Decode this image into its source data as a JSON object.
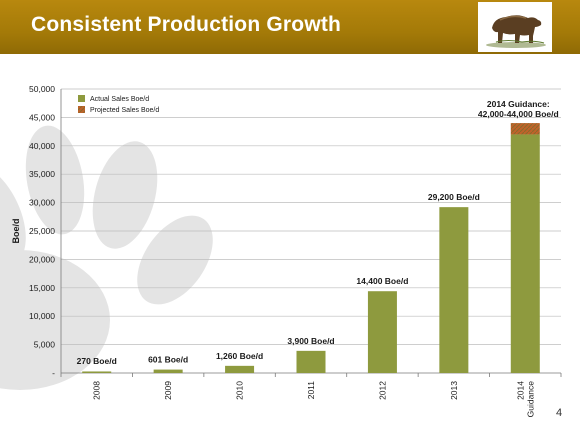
{
  "slide": {
    "title": "Consistent Production Growth",
    "page_number": "4",
    "logo_icon": "bear-icon",
    "watermark_icon": "paw-print-icon"
  },
  "colors": {
    "header_gold": "#a47a08",
    "actual_bar": "#8e9a3e",
    "projected_bar": "#c0622a",
    "text": "#1a1a1a"
  },
  "chart_data": {
    "type": "bar",
    "categories": [
      "2008",
      "2009",
      "2010",
      "2011",
      "2012",
      "2013",
      "2014\nGuidance"
    ],
    "series": [
      {
        "name": "Actual Sales Boe/d",
        "values": [
          270,
          601,
          1260,
          3900,
          14400,
          29200,
          42000
        ]
      },
      {
        "name": "Projected Sales Boe/d",
        "values": [
          0,
          0,
          0,
          0,
          0,
          0,
          2000
        ]
      }
    ],
    "stacked": true,
    "data_labels": [
      "270 Boe/d",
      "601 Boe/d",
      "1,260 Boe/d",
      "3,900 Boe/d",
      "14,400 Boe/d",
      "29,200 Boe/d",
      "2014 Guidance:\n42,000-44,000 Boe/d"
    ],
    "ylabel": "Boe/d",
    "xlabel": "",
    "ylim": [
      0,
      50000
    ],
    "yticks": [
      0,
      5000,
      10000,
      15000,
      20000,
      25000,
      30000,
      35000,
      40000,
      45000,
      50000
    ],
    "ytick_labels": [
      "-",
      "5,000",
      "10,000",
      "15,000",
      "20,000",
      "25,000",
      "30,000",
      "35,000",
      "40,000",
      "45,000",
      "50,000"
    ],
    "grid": "horizontal",
    "legend_position": "top-left"
  }
}
